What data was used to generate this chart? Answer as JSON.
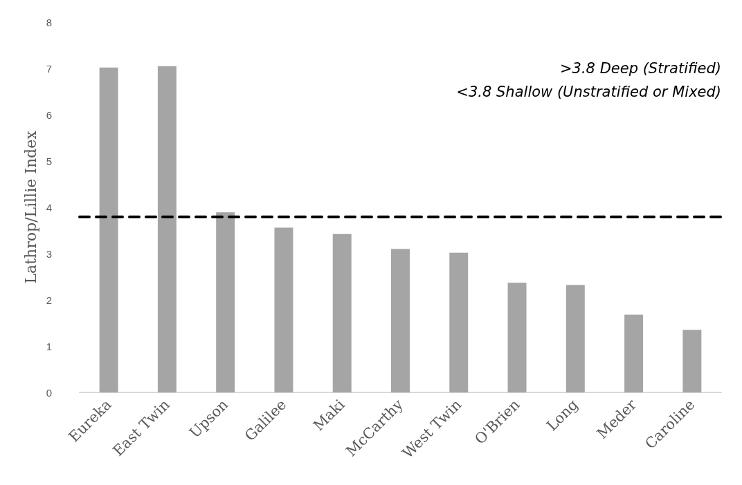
{
  "chart_data": {
    "type": "bar",
    "ylabel": "Lathrop/Lillie Index",
    "categories": [
      "Eureka",
      "East Twin",
      "Upson",
      "Galilee",
      "Maki",
      "McCarthy",
      "West Twin",
      "O'Brien",
      "Long",
      "Meder",
      "Caroline"
    ],
    "values": [
      7.02,
      7.05,
      3.89,
      3.56,
      3.42,
      3.1,
      3.02,
      2.37,
      2.32,
      1.68,
      1.35
    ],
    "color": "#a5a5a5",
    "ylim": [
      0,
      8
    ],
    "yticks": [
      0,
      1,
      2,
      3,
      4,
      5,
      6,
      7,
      8
    ],
    "grid": false,
    "ref_lines": [
      {
        "axis": "y",
        "value": 3.8,
        "color": "#000000",
        "line_style": "dashed"
      }
    ],
    "annotations": [
      ">3.8 Deep (Stratified)",
      "<3.8 Shallow (Unstratified or Mixed)"
    ]
  }
}
